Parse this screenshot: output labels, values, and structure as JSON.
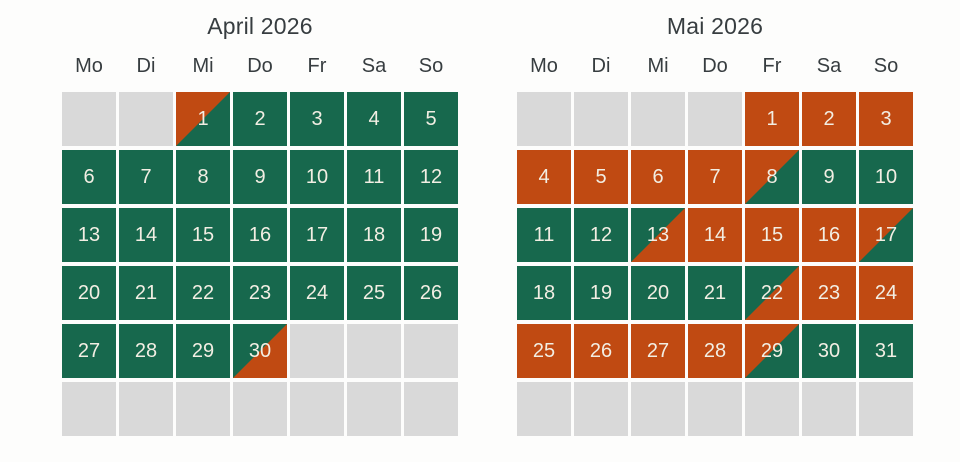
{
  "colors": {
    "free": "#17684d",
    "booked": "#c04a12",
    "empty": "#d9d9d9",
    "day_text": "#f2eee3",
    "heading_text": "#373d40",
    "background": "#fdfdfc"
  },
  "states_legend": {
    "free": "available (green)",
    "booked": "occupied (orange)",
    "departure": "occupied until midday (orange top-left / green bottom-right)",
    "arrival": "occupied from midday (green top-left / orange bottom-right)",
    "empty": "outside month (gray)"
  },
  "months": [
    {
      "key": "april",
      "title": "April 2026",
      "weekdays": [
        "Mo",
        "Di",
        "Mi",
        "Do",
        "Fr",
        "Sa",
        "So"
      ],
      "cells": [
        {
          "day": "",
          "state": "empty"
        },
        {
          "day": "",
          "state": "empty"
        },
        {
          "day": "1",
          "state": "departure"
        },
        {
          "day": "2",
          "state": "free"
        },
        {
          "day": "3",
          "state": "free"
        },
        {
          "day": "4",
          "state": "free"
        },
        {
          "day": "5",
          "state": "free"
        },
        {
          "day": "6",
          "state": "free"
        },
        {
          "day": "7",
          "state": "free"
        },
        {
          "day": "8",
          "state": "free"
        },
        {
          "day": "9",
          "state": "free"
        },
        {
          "day": "10",
          "state": "free"
        },
        {
          "day": "11",
          "state": "free"
        },
        {
          "day": "12",
          "state": "free"
        },
        {
          "day": "13",
          "state": "free"
        },
        {
          "day": "14",
          "state": "free"
        },
        {
          "day": "15",
          "state": "free"
        },
        {
          "day": "16",
          "state": "free"
        },
        {
          "day": "17",
          "state": "free"
        },
        {
          "day": "18",
          "state": "free"
        },
        {
          "day": "19",
          "state": "free"
        },
        {
          "day": "20",
          "state": "free"
        },
        {
          "day": "21",
          "state": "free"
        },
        {
          "day": "22",
          "state": "free"
        },
        {
          "day": "23",
          "state": "free"
        },
        {
          "day": "24",
          "state": "free"
        },
        {
          "day": "25",
          "state": "free"
        },
        {
          "day": "26",
          "state": "free"
        },
        {
          "day": "27",
          "state": "free"
        },
        {
          "day": "28",
          "state": "free"
        },
        {
          "day": "29",
          "state": "free"
        },
        {
          "day": "30",
          "state": "arrival"
        },
        {
          "day": "",
          "state": "empty"
        },
        {
          "day": "",
          "state": "empty"
        },
        {
          "day": "",
          "state": "empty"
        },
        {
          "day": "",
          "state": "empty"
        },
        {
          "day": "",
          "state": "empty"
        },
        {
          "day": "",
          "state": "empty"
        },
        {
          "day": "",
          "state": "empty"
        },
        {
          "day": "",
          "state": "empty"
        },
        {
          "day": "",
          "state": "empty"
        },
        {
          "day": "",
          "state": "empty"
        }
      ]
    },
    {
      "key": "mai",
      "title": "Mai 2026",
      "weekdays": [
        "Mo",
        "Di",
        "Mi",
        "Do",
        "Fr",
        "Sa",
        "So"
      ],
      "cells": [
        {
          "day": "",
          "state": "empty"
        },
        {
          "day": "",
          "state": "empty"
        },
        {
          "day": "",
          "state": "empty"
        },
        {
          "day": "",
          "state": "empty"
        },
        {
          "day": "1",
          "state": "booked"
        },
        {
          "day": "2",
          "state": "booked"
        },
        {
          "day": "3",
          "state": "booked"
        },
        {
          "day": "4",
          "state": "booked"
        },
        {
          "day": "5",
          "state": "booked"
        },
        {
          "day": "6",
          "state": "booked"
        },
        {
          "day": "7",
          "state": "booked"
        },
        {
          "day": "8",
          "state": "departure"
        },
        {
          "day": "9",
          "state": "free"
        },
        {
          "day": "10",
          "state": "free"
        },
        {
          "day": "11",
          "state": "free"
        },
        {
          "day": "12",
          "state": "free"
        },
        {
          "day": "13",
          "state": "arrival"
        },
        {
          "day": "14",
          "state": "booked"
        },
        {
          "day": "15",
          "state": "booked"
        },
        {
          "day": "16",
          "state": "booked"
        },
        {
          "day": "17",
          "state": "departure"
        },
        {
          "day": "18",
          "state": "free"
        },
        {
          "day": "19",
          "state": "free"
        },
        {
          "day": "20",
          "state": "free"
        },
        {
          "day": "21",
          "state": "free"
        },
        {
          "day": "22",
          "state": "arrival"
        },
        {
          "day": "23",
          "state": "booked"
        },
        {
          "day": "24",
          "state": "booked"
        },
        {
          "day": "25",
          "state": "booked"
        },
        {
          "day": "26",
          "state": "booked"
        },
        {
          "day": "27",
          "state": "booked"
        },
        {
          "day": "28",
          "state": "booked"
        },
        {
          "day": "29",
          "state": "departure"
        },
        {
          "day": "30",
          "state": "free"
        },
        {
          "day": "31",
          "state": "free"
        },
        {
          "day": "",
          "state": "empty"
        },
        {
          "day": "",
          "state": "empty"
        },
        {
          "day": "",
          "state": "empty"
        },
        {
          "day": "",
          "state": "empty"
        },
        {
          "day": "",
          "state": "empty"
        },
        {
          "day": "",
          "state": "empty"
        },
        {
          "day": "",
          "state": "empty"
        }
      ]
    }
  ]
}
